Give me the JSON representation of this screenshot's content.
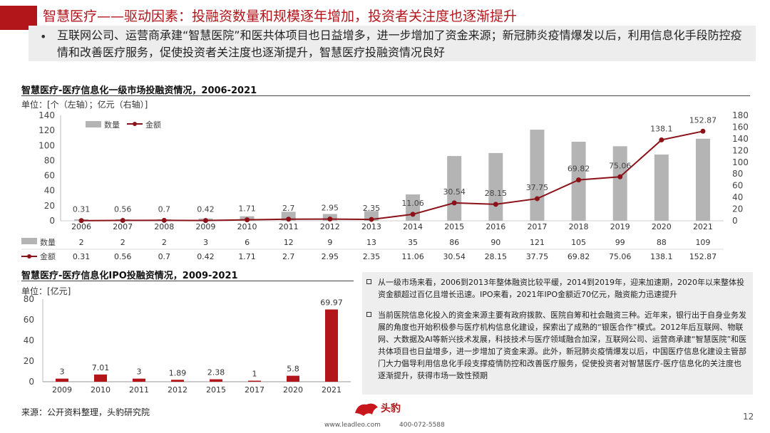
{
  "header": {
    "title": "智慧医疗——驱动因素：投融资数量和规模逐年增加，投资者关注度也逐渐提升",
    "bullet": "互联网公司、运营商承建“智慧医院”和医共体项目也日益增多，进一步增加了资金来源；新冠肺炎疫情爆发以后，利用信息化手段防控疫情和改善医疗服务，促使投资者关注度也逐渐提升，智慧医疗投融资情况良好"
  },
  "colors": {
    "accent": "#b2161b",
    "bar_gray": "#b4b4b4",
    "line_red": "#8b1218",
    "ipo_bar": "#b2161b"
  },
  "chart_data": [
    {
      "type": "bar+line",
      "title": "智慧医疗-医疗信息化一级市场投融资情况，2006-2021",
      "unit": "单位：[个（左轴）；亿元（右轴）]",
      "categories": [
        "2006",
        "2007",
        "2008",
        "2009",
        "2010",
        "2011",
        "2012",
        "2013",
        "2014",
        "2015",
        "2016",
        "2017",
        "2018",
        "2019",
        "2020",
        "2021"
      ],
      "series": [
        {
          "name": "数量",
          "type": "bar",
          "axis": "left",
          "values": [
            2,
            2,
            2,
            3,
            6,
            12,
            9,
            13,
            35,
            86,
            90,
            121,
            105,
            99,
            88,
            109
          ],
          "labels": [
            "2",
            "2",
            "2",
            "3",
            "6",
            "12",
            "9",
            "13",
            "35",
            "86",
            "90",
            "121",
            "105",
            "99",
            "88",
            "109"
          ]
        },
        {
          "name": "金额",
          "type": "line",
          "axis": "right",
          "values": [
            0.31,
            0.56,
            0.7,
            0.42,
            1.71,
            2.7,
            2.95,
            2.35,
            11.06,
            30.54,
            28.15,
            37.75,
            69.82,
            75.06,
            138.1,
            152.87
          ],
          "labels": [
            "0.31",
            "0.56",
            "0.7",
            "0.42",
            "1.71",
            "2.7",
            "2.95",
            "2.35",
            "11.06",
            "30.54",
            "28.15",
            "37.75",
            "69.82",
            "75.06",
            "138.1",
            "152.87"
          ],
          "table_labels": [
            "0.31",
            "0.56",
            "0.7",
            "0.42",
            "1.71",
            "2.7",
            "2.95",
            "2.35",
            "11.06",
            "30.54",
            "28.15",
            "37.75",
            "69.82",
            "75.06",
            "138.1",
            "152.87"
          ]
        }
      ],
      "ylim_left": [
        0,
        140
      ],
      "yticks_left": [
        "0",
        "20",
        "40",
        "60",
        "80",
        "100",
        "120",
        "140"
      ],
      "ylim_right": [
        0,
        180
      ],
      "yticks_right": [
        "0",
        "20",
        "40",
        "60",
        "80",
        "100",
        "120",
        "140",
        "160",
        "180"
      ],
      "legend_placement": "top-left"
    },
    {
      "type": "bar",
      "title": "智慧医疗-医疗信息化IPO投融资情况，2009-2021",
      "unit": "单位：[亿元]",
      "categories": [
        "2009",
        "2010",
        "2011",
        "2012",
        "2015",
        "2017",
        "2020",
        "2021"
      ],
      "values": [
        3,
        7.01,
        3,
        1.89,
        2.38,
        1,
        5.8,
        69.97
      ],
      "labels": [
        "3",
        "7.01",
        "3",
        "1.89",
        "2.38",
        "1",
        "5.8",
        "69.97"
      ],
      "ylim": [
        0,
        80
      ],
      "yticks": [
        "0",
        "20",
        "40",
        "60",
        "80"
      ]
    }
  ],
  "notes": [
    "从一级市场来看，2006到2013年整体融资比较平缓，2014到2019年，迎来加速期，2020年以来整体投资金额超过百亿且增长迅速。IPO来看，2021年IPO金额近70亿元，融资能力迅速提升",
    "当前医院信息化投入的资金来源主要有政府拨款、医院自筹和社会融资三种。近年来，银行出于自身业务发展的角度也开始积极参与医疗机构信息化建设，探索出了成熟的“银医合作”模式。2012年后互联网、物联网、大数据及AI等新兴技术发展，科技技术与医疗领域融合加深，互联网公司、运营商承建“智慧医院”和医共体项目也日益增多，进一步增加了资金来源。此外，新冠肺炎疫情爆发以后，中国医疗信息化建设主管部门大力倡导利用信息化手段支撑疫情防控和改善医疗服务，促使投资者对智慧医疗-医疗信息化的关注度也逐渐提升，获得市场一致性预期"
  ],
  "footer": {
    "source": "来源：公开资料整理，头豹研究院",
    "logo_text": "头豹",
    "website": "www.leadleo.com",
    "phone": "400-072-5588",
    "page": "12"
  }
}
